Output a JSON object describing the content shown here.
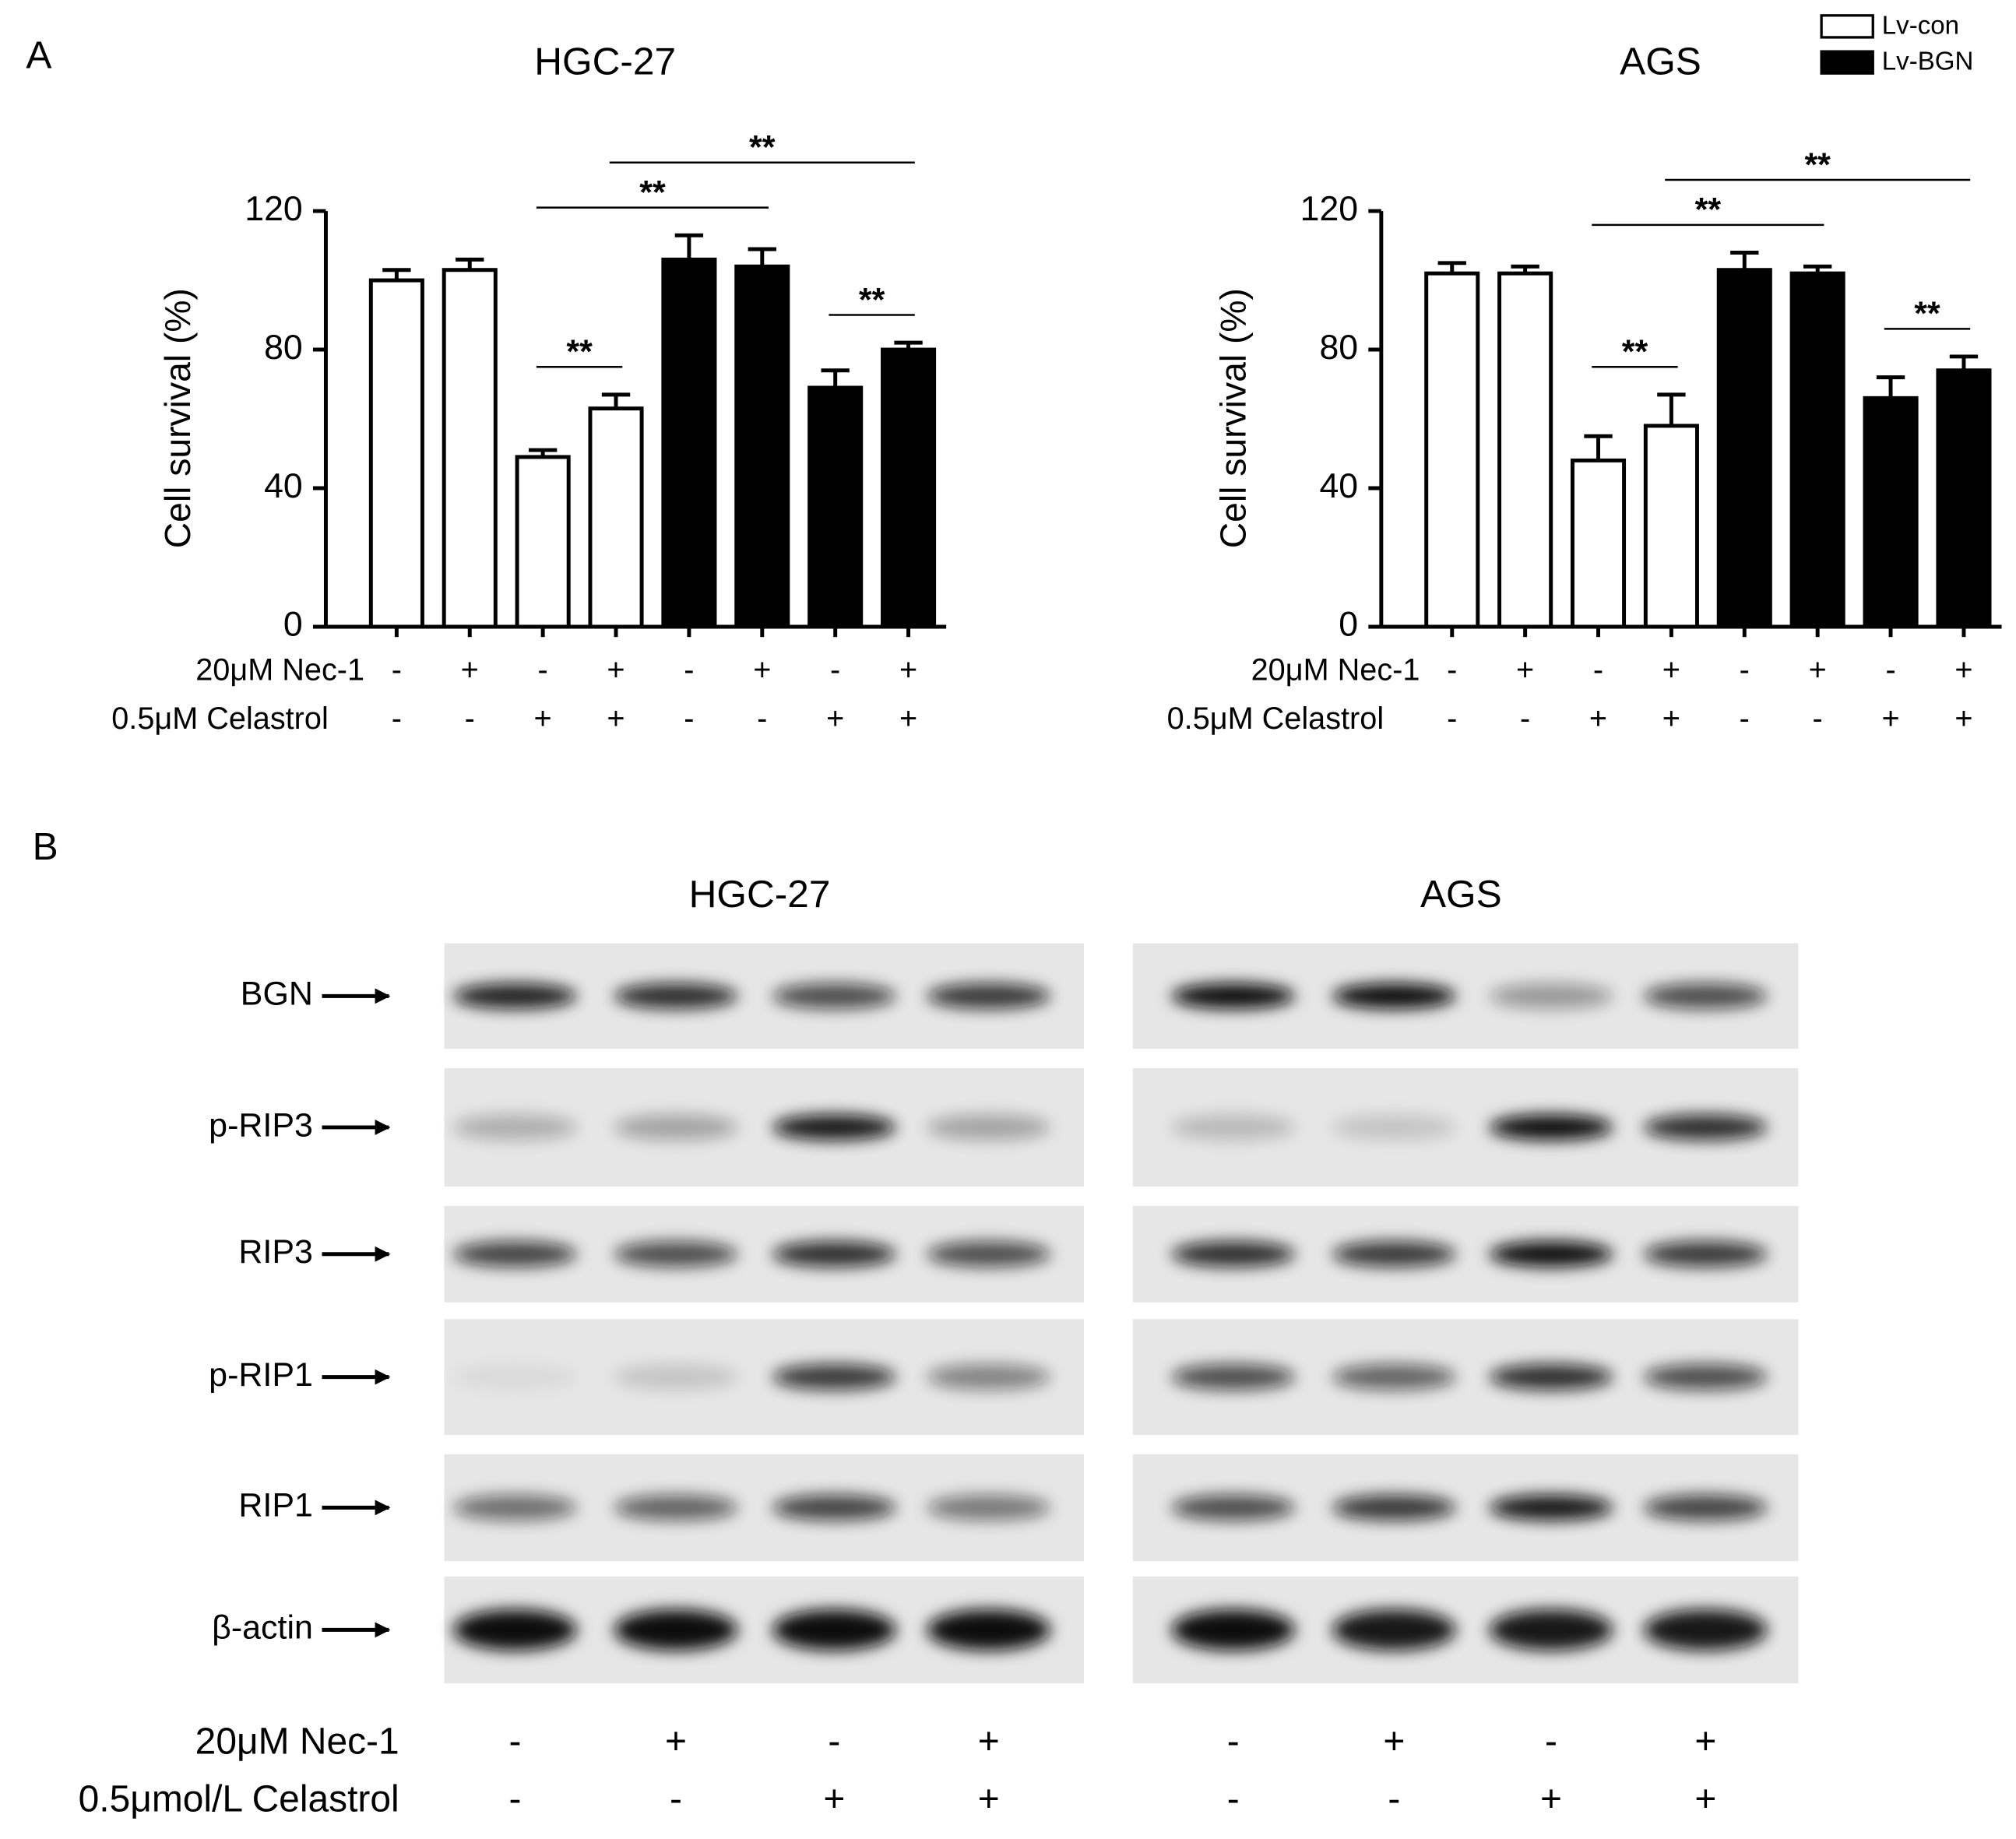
{
  "panel_a_label": "A",
  "panel_b_label": "B",
  "chart_data": [
    {
      "type": "bar",
      "title": "HGC-27",
      "ylabel": "Cell survival (%)",
      "ylim": [
        0,
        120
      ],
      "yticks": [
        0,
        40,
        80,
        120
      ],
      "series": [
        {
          "name": "Lv-con",
          "color": "#ffffff",
          "values": [
            100,
            103,
            49,
            63,
            null,
            null,
            null,
            null
          ],
          "errors": [
            3,
            3,
            2,
            4,
            null,
            null,
            null,
            null
          ]
        },
        {
          "name": "Lv-BGN",
          "color": "#000000",
          "values": [
            null,
            null,
            null,
            null,
            106,
            104,
            69,
            80
          ],
          "errors": [
            null,
            null,
            null,
            null,
            7,
            5,
            5,
            2
          ]
        }
      ],
      "treatments": [
        {
          "label": "20μM Nec-1",
          "signs": [
            "-",
            "+",
            "-",
            "+",
            "-",
            "+",
            "-",
            "+"
          ]
        },
        {
          "label": "0.5μM Celastrol",
          "signs": [
            "-",
            "-",
            "+",
            "+",
            "-",
            "-",
            "+",
            "+"
          ]
        }
      ],
      "annotations": [
        {
          "text": "**",
          "from": 2,
          "to": 3
        },
        {
          "text": "**",
          "from": 6,
          "to": 7
        },
        {
          "text": "**",
          "from": 2,
          "to": 5
        },
        {
          "text": "**",
          "from": 3,
          "to": 7
        }
      ]
    },
    {
      "type": "bar",
      "title": "AGS",
      "ylabel": "Cell survival (%)",
      "ylim": [
        0,
        120
      ],
      "yticks": [
        0,
        40,
        80,
        120
      ],
      "series": [
        {
          "color": "#ffffff",
          "values": [
            102,
            102,
            48,
            58,
            null,
            null,
            null,
            null
          ],
          "errors": [
            3,
            2,
            7,
            9,
            null,
            null,
            null,
            null
          ]
        },
        {
          "color": "#000000",
          "values": [
            null,
            null,
            null,
            null,
            103,
            102,
            66,
            74
          ],
          "errors": [
            null,
            null,
            null,
            null,
            5,
            2,
            6,
            4
          ]
        }
      ],
      "treatments": [
        {
          "label": "20μM Nec-1",
          "signs": [
            "-",
            "+",
            "-",
            "+",
            "-",
            "+",
            "-",
            "+"
          ]
        },
        {
          "label": "0.5μM Celastrol",
          "signs": [
            "-",
            "-",
            "+",
            "+",
            "-",
            "-",
            "+",
            "+"
          ]
        }
      ],
      "annotations": [
        {
          "text": "**",
          "from": 2,
          "to": 3
        },
        {
          "text": "**",
          "from": 6,
          "to": 7
        },
        {
          "text": "**",
          "from": 2,
          "to": 5
        },
        {
          "text": "**",
          "from": 3,
          "to": 7
        }
      ]
    }
  ],
  "blots": {
    "proteins": [
      "BGN",
      "p-RIP3",
      "RIP3",
      "p-RIP1",
      "RIP1",
      "β-actin"
    ],
    "panels": [
      {
        "title": "HGC-27",
        "treatments": [
          {
            "label": "20μM Nec-1",
            "signs": [
              "-",
              "+",
              "-",
              "+"
            ]
          },
          {
            "label": "0.5μmol/L Celastrol",
            "signs": [
              "-",
              "-",
              "+",
              "+"
            ]
          }
        ]
      },
      {
        "title": "AGS",
        "treatments": [
          {
            "signs": [
              "-",
              "+",
              "-",
              "+"
            ]
          },
          {
            "signs": [
              "-",
              "-",
              "+",
              "+"
            ]
          }
        ]
      }
    ]
  }
}
